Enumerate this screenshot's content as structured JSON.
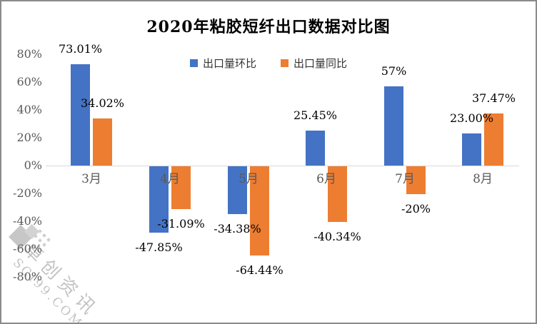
{
  "title": "2020年粘胶短纤出口数据对比图",
  "legend": [
    {
      "label": "出口量环比",
      "color": "#4472C4"
    },
    {
      "label": "出口量同比",
      "color": "#ED7D31"
    }
  ],
  "colors": {
    "series_blue": "#4472C4",
    "series_orange": "#ED7D31",
    "axis_line": "#d8d8d8",
    "axis_text": "#595959",
    "data_label": "#000000",
    "watermark": "#c3c3c3",
    "frame": "#8a8a8a"
  },
  "chart_data": {
    "type": "bar",
    "title": "2020年粘胶短纤出口数据对比图",
    "categories": [
      "3月",
      "4月",
      "5月",
      "6月",
      "7月",
      "8月"
    ],
    "series": [
      {
        "name": "出口量环比",
        "color": "#4472C4",
        "values": [
          73.01,
          -47.85,
          -34.38,
          25.45,
          57,
          23.0
        ],
        "labels": [
          "73.01%",
          "-47.85%",
          "-34.38%",
          "25.45%",
          "57%",
          "23.00%"
        ]
      },
      {
        "name": "出口量同比",
        "color": "#ED7D31",
        "values": [
          34.02,
          -31.09,
          -64.44,
          -40.34,
          -20,
          37.47
        ],
        "labels": [
          "34.02%",
          "-31.09%",
          "-64.44%",
          "-40.34%",
          "-20%",
          "37.47%"
        ]
      }
    ],
    "xlabel": "",
    "ylabel": "",
    "ylim": [
      -80,
      80
    ],
    "y_ticks": [
      "80%",
      "60%",
      "40%",
      "20%",
      "0%",
      "-20%",
      "-40%",
      "-60%",
      "-80%"
    ],
    "grid": false,
    "legend_position": "top-center",
    "data_labels_shown": true
  },
  "watermark": {
    "cn": "卓创资讯",
    "en": "SCI99.COM"
  }
}
